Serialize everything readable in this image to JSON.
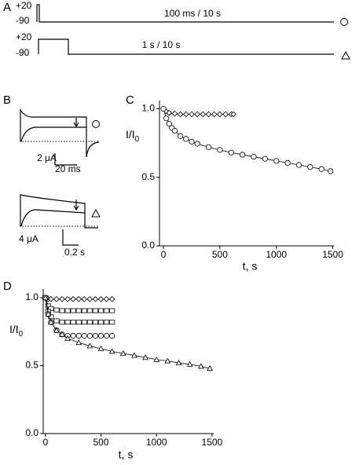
{
  "panel_labels": [
    "A",
    "B",
    "C",
    "D"
  ],
  "protocols": {
    "p1_high": "+20",
    "p1_low": "-90",
    "p1_label": "100 ms / 10 s",
    "p2_high": "+20",
    "p2_low": "-90",
    "p2_label": "1 s / 10 s"
  },
  "traces": {
    "t1_current": "2 μA",
    "t1_time": "20 ms",
    "t2_current": "4 μA",
    "t2_time": "0.2 s"
  },
  "chart_data": [
    {
      "type": "scatter",
      "xlabel": "t, s",
      "ylabel": "I/I",
      "ylabel_subscript": "0",
      "xlim": [
        -35,
        1510
      ],
      "ylim": [
        0,
        1.06
      ],
      "xticks": [
        0,
        500,
        1000,
        1500
      ],
      "yticks": [
        {
          "value": 0,
          "label": "0.0"
        },
        0.5,
        {
          "value": 1,
          "label": "1.0"
        }
      ],
      "series": [
        {
          "marker": "diamond",
          "color": "#000000",
          "x": [
            0,
            25,
            50,
            100,
            150,
            200,
            250,
            300,
            350,
            400,
            450,
            500,
            550,
            600,
            620
          ],
          "values": [
            1.0,
            0.98,
            0.97,
            0.965,
            0.96,
            0.96,
            0.96,
            0.96,
            0.96,
            0.96,
            0.96,
            0.96,
            0.96,
            0.96,
            0.96
          ]
        },
        {
          "marker": "circle",
          "color": "#000000",
          "x": [
            0,
            25,
            50,
            75,
            100,
            150,
            200,
            250,
            300,
            400,
            500,
            600,
            700,
            800,
            900,
            1000,
            1100,
            1200,
            1300,
            1400,
            1480
          ],
          "values": [
            1.0,
            0.93,
            0.89,
            0.86,
            0.84,
            0.8,
            0.78,
            0.76,
            0.745,
            0.72,
            0.7,
            0.68,
            0.665,
            0.65,
            0.635,
            0.62,
            0.605,
            0.59,
            0.575,
            0.56,
            0.545
          ]
        }
      ]
    },
    {
      "type": "scatter",
      "xlabel": "t, s",
      "ylabel": "I/I",
      "ylabel_subscript": "0",
      "xlim": [
        -20,
        1515
      ],
      "ylim": [
        0,
        1.064
      ],
      "xticks": [
        0,
        500,
        1000,
        1500
      ],
      "yticks": [
        {
          "value": 0,
          "label": "0.0"
        },
        0.5,
        {
          "value": 1,
          "label": "1.0"
        }
      ],
      "series": [
        {
          "marker": "diamond",
          "color": "#000000",
          "x": [
            0,
            25,
            50,
            100,
            150,
            200,
            250,
            300,
            350,
            400,
            450,
            500,
            550,
            600
          ],
          "values": [
            1.0,
            0.99,
            0.99,
            0.99,
            0.99,
            0.99,
            0.99,
            0.99,
            0.99,
            0.99,
            0.99,
            0.99,
            0.99,
            0.99
          ]
        },
        {
          "marker": "square",
          "color": "#000000",
          "x": [
            0,
            25,
            50,
            100,
            150,
            200,
            250,
            300,
            350,
            400,
            450,
            500,
            550,
            600
          ],
          "values": [
            1.0,
            0.94,
            0.92,
            0.91,
            0.905,
            0.905,
            0.905,
            0.905,
            0.905,
            0.905,
            0.905,
            0.905,
            0.905,
            0.905
          ]
        },
        {
          "marker": "square",
          "color": "#000000",
          "x": [
            0,
            25,
            50,
            100,
            150,
            200,
            250,
            300,
            350,
            400,
            450,
            500,
            550,
            600
          ],
          "values": [
            1.0,
            0.9,
            0.86,
            0.83,
            0.82,
            0.82,
            0.82,
            0.82,
            0.82,
            0.82,
            0.82,
            0.82,
            0.82,
            0.82
          ]
        },
        {
          "marker": "circle",
          "color": "#000000",
          "x": [
            0,
            25,
            50,
            100,
            150,
            200,
            250,
            300,
            350,
            400,
            450,
            500,
            550,
            600
          ],
          "values": [
            1.0,
            0.88,
            0.82,
            0.76,
            0.73,
            0.72,
            0.72,
            0.72,
            0.72,
            0.72,
            0.72,
            0.72,
            0.72,
            0.72
          ]
        },
        {
          "marker": "triangle",
          "color": "#000000",
          "x": [
            0,
            25,
            50,
            100,
            150,
            200,
            300,
            400,
            500,
            600,
            700,
            800,
            900,
            1000,
            1100,
            1200,
            1300,
            1400,
            1480
          ],
          "values": [
            1.0,
            0.88,
            0.82,
            0.76,
            0.73,
            0.7,
            0.67,
            0.645,
            0.625,
            0.605,
            0.59,
            0.575,
            0.56,
            0.545,
            0.535,
            0.52,
            0.51,
            0.495,
            0.48
          ]
        }
      ]
    }
  ]
}
